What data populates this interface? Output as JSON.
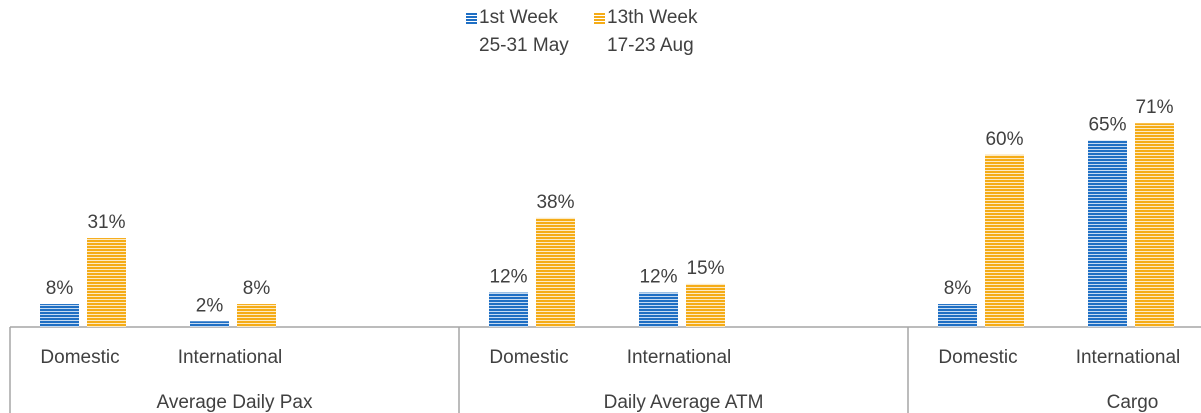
{
  "chart_data": {
    "type": "bar",
    "categories": [
      "Domestic",
      "International",
      "Domestic",
      "International",
      "Domestic",
      "International"
    ],
    "groups": [
      "Average Daily Pax",
      "Daily Average ATM",
      "Cargo"
    ],
    "series": [
      {
        "name": "1st Week\n25-31 May",
        "color": "#1f6fc4",
        "values": [
          8,
          2,
          12,
          12,
          8,
          65
        ],
        "value_labels": [
          "8%",
          "2%",
          "12%",
          "12%",
          "8%",
          "65%"
        ]
      },
      {
        "name": "13th Week\n17-23 Aug",
        "color": "#f5ac17",
        "values": [
          31,
          8,
          38,
          15,
          60,
          71
        ],
        "value_labels": [
          "31%",
          "8%",
          "38%",
          "15%",
          "60%",
          "71%"
        ]
      }
    ],
    "legend": "top"
  }
}
